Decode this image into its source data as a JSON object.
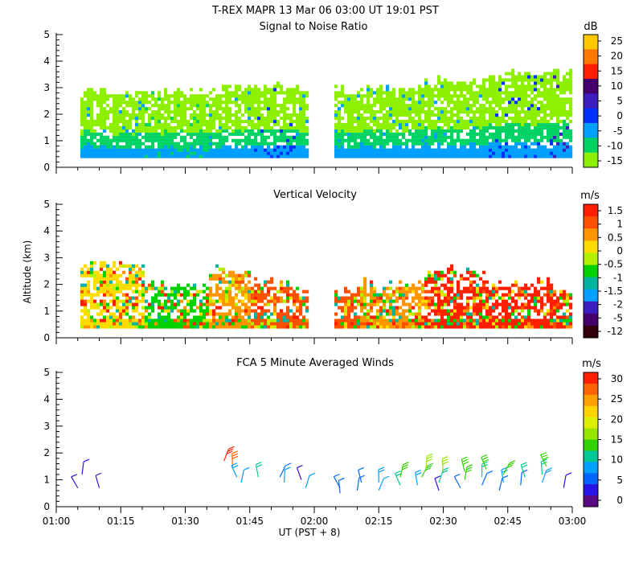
{
  "header": {
    "title": "T-REX   MAPR 13 Mar 06   03:00 UT   19:01   PST"
  },
  "chart_data": [
    {
      "type": "heatmap",
      "title": "Signal to Noise Ratio",
      "ylabel": "",
      "xlabel": "",
      "ylim": [
        0,
        5
      ],
      "yticks": [
        "0",
        "1",
        "2",
        "3",
        "4",
        "5"
      ],
      "colorbar_unit": "dB",
      "colorbar_labels": [
        "25",
        "20",
        "15",
        "10",
        "5",
        "0",
        "-5",
        "-10",
        "-15"
      ],
      "colorbar_colors": [
        "#ffc800",
        "#ff7800",
        "#ff1e00",
        "#46006e",
        "#3c1ebe",
        "#0032ff",
        "#00a0ff",
        "#00d264",
        "#8cf000"
      ],
      "data_gap_ut": [
        "01:59",
        "02:04"
      ],
      "profiles": [
        {
          "ut": "01:05",
          "top_km": 2.8,
          "low_color": "#00a0ff"
        },
        {
          "ut": "01:20",
          "top_km": 2.8,
          "low_color": "#00d264"
        },
        {
          "ut": "01:35",
          "top_km": 2.9,
          "low_color": "#00a0ff"
        },
        {
          "ut": "01:45",
          "top_km": 3.0,
          "low_color": "#0032ff"
        },
        {
          "ut": "01:55",
          "top_km": 2.9,
          "low_color": "#00a0ff"
        },
        {
          "ut": "02:10",
          "top_km": 2.9,
          "low_color": "#00a0ff"
        },
        {
          "ut": "02:25",
          "top_km": 3.2,
          "low_color": "#00a0ff"
        },
        {
          "ut": "02:40",
          "top_km": 3.5,
          "low_color": "#0032ff"
        },
        {
          "ut": "02:55",
          "top_km": 3.7,
          "low_color": "#3c1ebe"
        }
      ]
    },
    {
      "type": "heatmap",
      "title": "Vertical Velocity",
      "ylabel": "Altitude (km)",
      "xlabel": "",
      "ylim": [
        0,
        5
      ],
      "yticks": [
        "0",
        "1",
        "2",
        "3",
        "4",
        "5"
      ],
      "colorbar_unit": "m/s",
      "colorbar_labels": [
        "1.5",
        "1",
        "0.5",
        "0",
        "-0.5",
        "-1",
        "-1.5",
        "-2",
        "-5",
        "-12"
      ],
      "colorbar_colors": [
        "#ff1e00",
        "#ff5000",
        "#ff9600",
        "#ffdc00",
        "#b4f000",
        "#00d200",
        "#00b4a0",
        "#00a0ff",
        "#3c1ebe",
        "#46006e",
        "#32000a"
      ],
      "profiles": [
        {
          "ut": "01:05",
          "top_km": 2.7,
          "dominant": "#ffdc00"
        },
        {
          "ut": "01:20",
          "top_km": 1.9,
          "dominant": "#00d200"
        },
        {
          "ut": "01:35",
          "top_km": 2.5,
          "dominant": "#ff9600"
        },
        {
          "ut": "01:45",
          "top_km": 2.0,
          "dominant": "#ff5000"
        },
        {
          "ut": "01:55",
          "top_km": 1.7,
          "dominant": "#ff5000"
        },
        {
          "ut": "02:10",
          "top_km": 2.0,
          "dominant": "#ff9600"
        },
        {
          "ut": "02:25",
          "top_km": 2.5,
          "dominant": "#ff1e00"
        },
        {
          "ut": "02:40",
          "top_km": 2.0,
          "dominant": "#ff1e00"
        },
        {
          "ut": "02:55",
          "top_km": 1.8,
          "dominant": "#ff1e00"
        }
      ]
    },
    {
      "type": "scatter",
      "title": "FCA 5 Minute Averaged Winds",
      "ylabel": "",
      "xlabel": "UT  (PST + 8)",
      "ylim": [
        0,
        5
      ],
      "yticks": [
        "0",
        "1",
        "2",
        "3",
        "4",
        "5"
      ],
      "xticks": [
        "01:00",
        "01:15",
        "01:30",
        "01:45",
        "02:00",
        "02:15",
        "02:30",
        "02:45",
        "03:00"
      ],
      "colorbar_unit": "m/s",
      "colorbar_labels": [
        "30",
        "25",
        "20",
        "15",
        "10",
        "5",
        "0"
      ],
      "colorbar_colors": [
        "#ff1e00",
        "#ff6400",
        "#ffa000",
        "#ffd200",
        "#dcf000",
        "#96e600",
        "#32d200",
        "#00c896",
        "#00a0ff",
        "#0064ff",
        "#2814e6",
        "#5a0a82"
      ],
      "barbs": [
        {
          "ut": "01:05",
          "alt_km": 0.7,
          "speed": 4
        },
        {
          "ut": "01:06",
          "alt_km": 1.2,
          "speed": 3
        },
        {
          "ut": "01:10",
          "alt_km": 0.7,
          "speed": 4
        },
        {
          "ut": "01:39",
          "alt_km": 1.7,
          "speed": 29
        },
        {
          "ut": "01:41",
          "alt_km": 1.5,
          "speed": 28
        },
        {
          "ut": "01:42",
          "alt_km": 1.1,
          "speed": 9
        },
        {
          "ut": "01:43",
          "alt_km": 0.9,
          "speed": 7
        },
        {
          "ut": "01:47",
          "alt_km": 1.1,
          "speed": 10
        },
        {
          "ut": "01:52",
          "alt_km": 1.1,
          "speed": 5
        },
        {
          "ut": "01:53",
          "alt_km": 0.9,
          "speed": 7
        },
        {
          "ut": "01:57",
          "alt_km": 1.0,
          "speed": 4
        },
        {
          "ut": "01:58",
          "alt_km": 0.7,
          "speed": 7
        },
        {
          "ut": "02:06",
          "alt_km": 0.5,
          "speed": 6
        },
        {
          "ut": "02:06",
          "alt_km": 0.7,
          "speed": 5
        },
        {
          "ut": "02:10",
          "alt_km": 0.6,
          "speed": 6
        },
        {
          "ut": "02:11",
          "alt_km": 0.9,
          "speed": 6
        },
        {
          "ut": "02:15",
          "alt_km": 0.6,
          "speed": 7
        },
        {
          "ut": "02:15",
          "alt_km": 0.9,
          "speed": 9
        },
        {
          "ut": "02:20",
          "alt_km": 0.8,
          "speed": 10
        },
        {
          "ut": "02:20",
          "alt_km": 1.1,
          "speed": 14
        },
        {
          "ut": "02:24",
          "alt_km": 0.8,
          "speed": 8
        },
        {
          "ut": "02:25",
          "alt_km": 1.1,
          "speed": 15
        },
        {
          "ut": "02:26",
          "alt_km": 1.4,
          "speed": 16
        },
        {
          "ut": "02:29",
          "alt_km": 0.6,
          "speed": 3
        },
        {
          "ut": "02:29",
          "alt_km": 0.9,
          "speed": 12
        },
        {
          "ut": "02:30",
          "alt_km": 1.3,
          "speed": 16
        },
        {
          "ut": "02:34",
          "alt_km": 0.7,
          "speed": 5
        },
        {
          "ut": "02:35",
          "alt_km": 1.0,
          "speed": 13
        },
        {
          "ut": "02:35",
          "alt_km": 1.3,
          "speed": 15
        },
        {
          "ut": "02:39",
          "alt_km": 0.8,
          "speed": 6
        },
        {
          "ut": "02:39",
          "alt_km": 1.1,
          "speed": 12
        },
        {
          "ut": "02:40",
          "alt_km": 1.4,
          "speed": 15
        },
        {
          "ut": "02:43",
          "alt_km": 0.6,
          "speed": 5
        },
        {
          "ut": "02:44",
          "alt_km": 0.9,
          "speed": 9
        },
        {
          "ut": "02:44",
          "alt_km": 1.2,
          "speed": 13
        },
        {
          "ut": "02:48",
          "alt_km": 0.8,
          "speed": 6
        },
        {
          "ut": "02:49",
          "alt_km": 1.1,
          "speed": 10
        },
        {
          "ut": "02:53",
          "alt_km": 0.9,
          "speed": 9
        },
        {
          "ut": "02:53",
          "alt_km": 1.2,
          "speed": 12
        },
        {
          "ut": "02:54",
          "alt_km": 1.5,
          "speed": 15
        },
        {
          "ut": "02:58",
          "alt_km": 0.7,
          "speed": 4
        }
      ]
    }
  ]
}
